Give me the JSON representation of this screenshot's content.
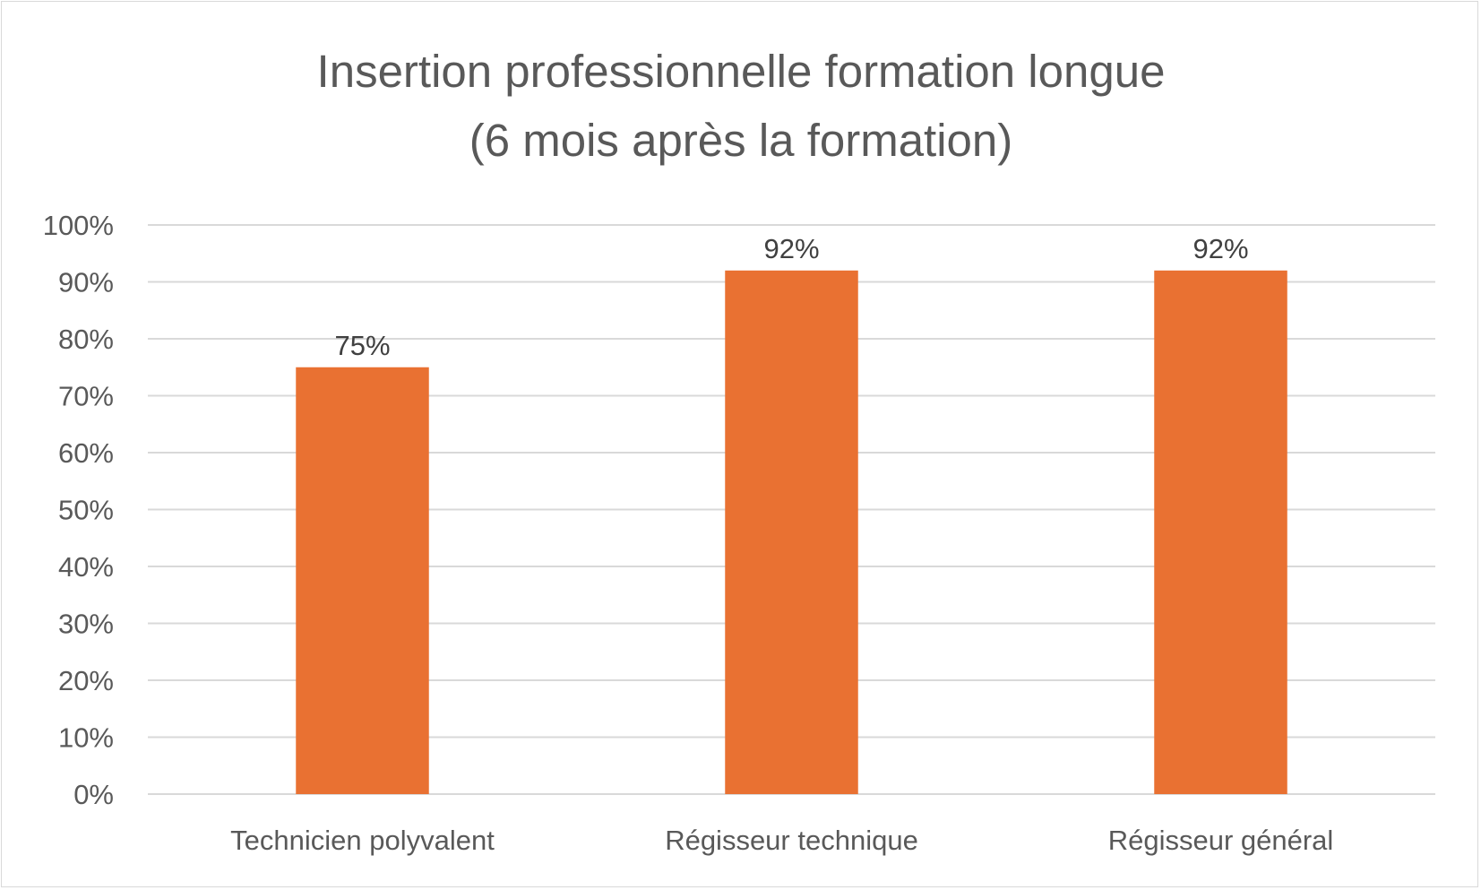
{
  "chart_data": {
    "type": "bar",
    "title": "Insertion professionnelle formation longue",
    "subtitle": "(6 mois après la formation)",
    "categories": [
      "Technicien polyvalent",
      "Régisseur technique",
      "Régisseur général"
    ],
    "values": [
      75,
      92,
      92
    ],
    "data_labels": [
      "75%",
      "92%",
      "92%"
    ],
    "ylim": [
      0,
      100
    ],
    "y_ticks": [
      0,
      10,
      20,
      30,
      40,
      50,
      60,
      70,
      80,
      90,
      100
    ],
    "y_tick_labels": [
      "0%",
      "10%",
      "20%",
      "30%",
      "40%",
      "50%",
      "60%",
      "70%",
      "80%",
      "90%",
      "100%"
    ],
    "xlabel": "",
    "ylabel": "",
    "grid": true,
    "legend": "none",
    "colors": {
      "bar": "#E97132",
      "grid": "#d9d9d9",
      "title": "#595959",
      "axis_text": "#595959",
      "data_label": "#404040"
    }
  }
}
